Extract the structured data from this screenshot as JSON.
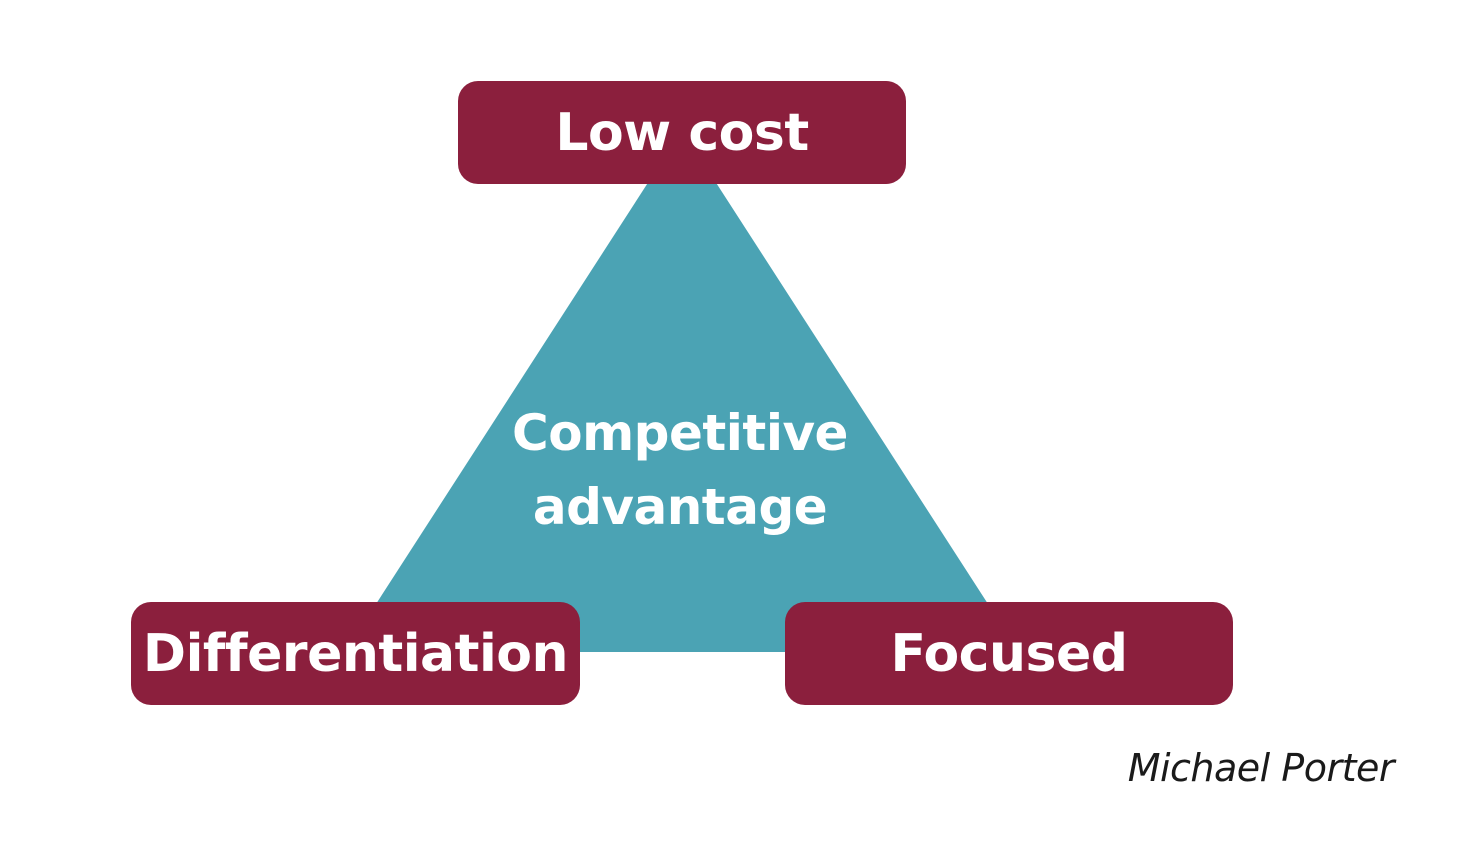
{
  "diagram": {
    "center_line1": "Competitive",
    "center_line2": "advantage",
    "top_label": "Low cost",
    "left_label": "Differentiation",
    "right_label": "Focused",
    "attribution": "Michael Porter"
  },
  "colors": {
    "triangle": "#4ba3b4",
    "box": "#8b1f3d",
    "text_on_shape": "#ffffff",
    "attribution_text": "#1a1a1a"
  }
}
